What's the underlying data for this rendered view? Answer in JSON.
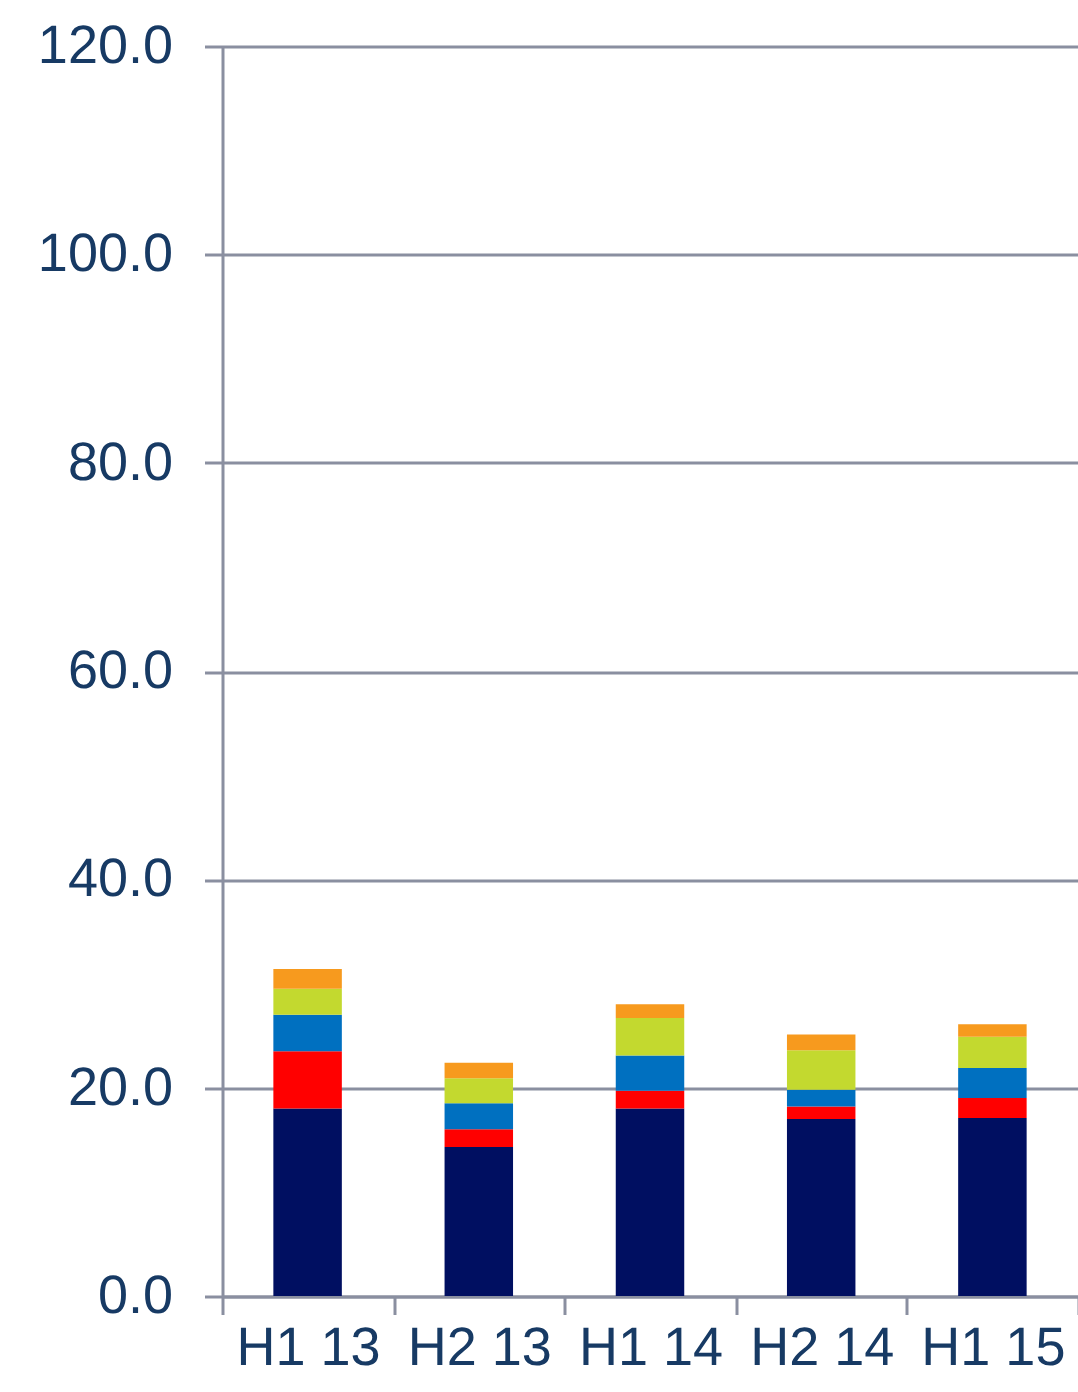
{
  "chart_data": {
    "type": "bar",
    "stacked": true,
    "categories": [
      "H1 13",
      "H2 13",
      "H1 14",
      "H2 14",
      "H1 15"
    ],
    "series": [
      {
        "color": "#000f61",
        "values": [
          18.0,
          14.3,
          18.0,
          17.0,
          17.1
        ]
      },
      {
        "color": "#ff0000",
        "values": [
          5.5,
          1.7,
          1.7,
          1.2,
          1.9
        ]
      },
      {
        "color": "#0070c0",
        "values": [
          3.5,
          2.5,
          3.4,
          1.6,
          2.9
        ]
      },
      {
        "color": "#c3d92f",
        "values": [
          2.5,
          2.4,
          3.6,
          3.8,
          3.0
        ]
      },
      {
        "color": "#f79a1e",
        "values": [
          1.9,
          1.5,
          1.3,
          1.5,
          1.2
        ]
      }
    ],
    "ylim": [
      0,
      120
    ],
    "yticks": [
      {
        "value": 0,
        "label": "0.0"
      },
      {
        "value": 20,
        "label": "20.0"
      },
      {
        "value": 40,
        "label": "40.0"
      },
      {
        "value": 60,
        "label": "60.0"
      },
      {
        "value": 80,
        "label": "80.0"
      },
      {
        "value": 100,
        "label": "100.0"
      },
      {
        "value": 120,
        "label": "120.0"
      }
    ],
    "grid": "y",
    "legend": false
  }
}
